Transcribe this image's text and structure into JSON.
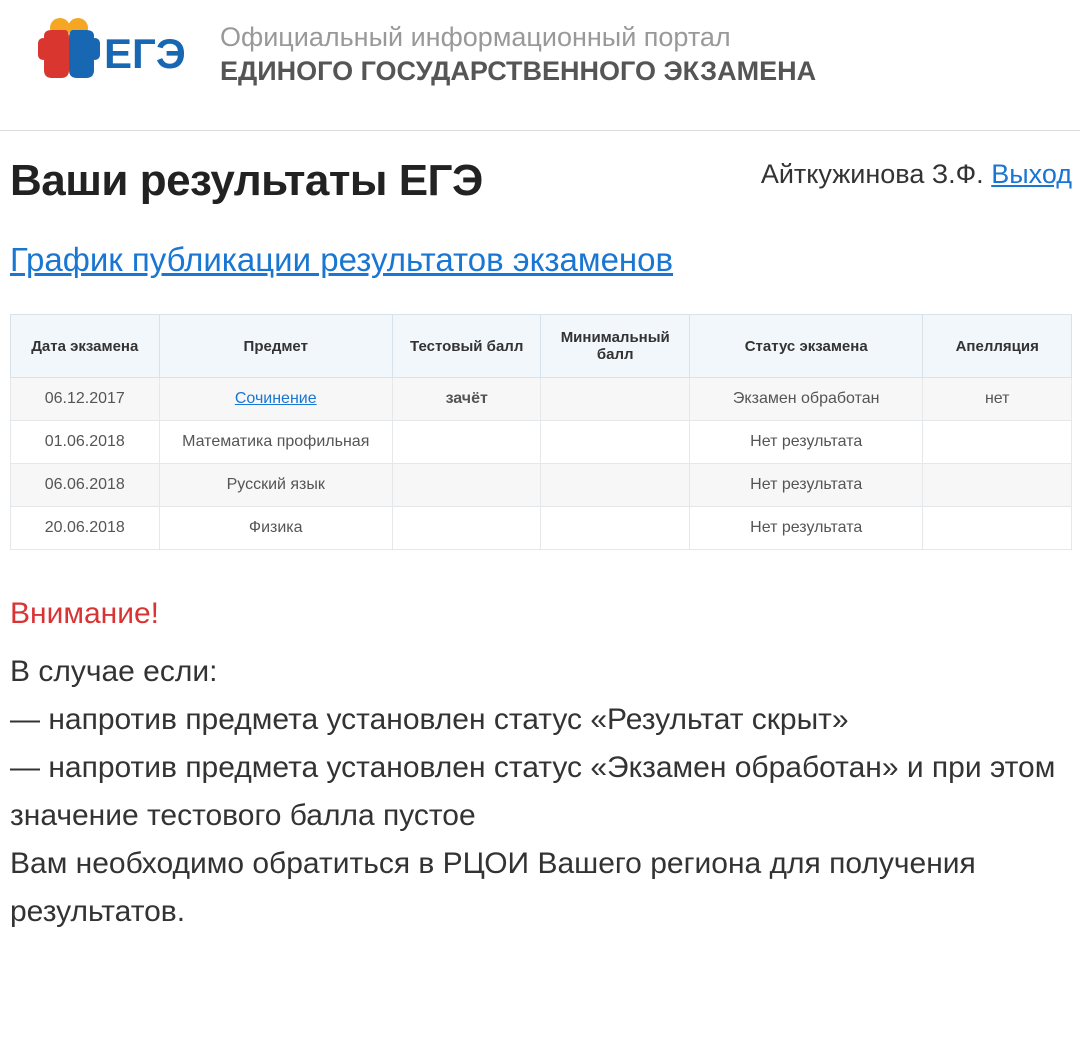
{
  "header": {
    "subtitle": "Официальный информационный портал",
    "title": "ЕДИНОГО ГОСУДАРСТВЕННОГО ЭКЗАМЕНА",
    "logo_text": "ЕГЭ",
    "logo_colors": {
      "left": "#d9362f",
      "right": "#1767b3",
      "head": "#f5a623"
    }
  },
  "user": {
    "name": "Айткужинова З.Ф.",
    "logout": "Выход"
  },
  "page": {
    "title": "Ваши результаты ЕГЭ",
    "schedule_link": "График публикации результатов экзаменов"
  },
  "table": {
    "columns": [
      "Дата экзамена",
      "Предмет",
      "Тестовый балл",
      "Минимальный балл",
      "Статус экзамена",
      "Апелляция"
    ],
    "col_widths": [
      "14%",
      "22%",
      "14%",
      "14%",
      "22%",
      "14%"
    ],
    "header_bg": "#f2f7fb",
    "border_color": "#d8e2ea",
    "alt_row_bg": "#f7f7f7",
    "rows": [
      {
        "date": "06.12.2017",
        "subject": "Сочинение",
        "subject_is_link": true,
        "score": "зачёт",
        "score_style": "pass",
        "min": "",
        "status": "Экзамен обработан",
        "appeal": "нет"
      },
      {
        "date": "01.06.2018",
        "subject": "Математика профильная",
        "subject_is_link": false,
        "score": "",
        "score_style": "",
        "min": "",
        "status": "Нет результата",
        "appeal": ""
      },
      {
        "date": "06.06.2018",
        "subject": "Русский язык",
        "subject_is_link": false,
        "score": "",
        "score_style": "",
        "min": "",
        "status": "Нет результата",
        "appeal": ""
      },
      {
        "date": "20.06.2018",
        "subject": "Физика",
        "subject_is_link": false,
        "score": "",
        "score_style": "",
        "min": "",
        "status": "Нет результата",
        "appeal": ""
      }
    ]
  },
  "notice": {
    "title": "Внимание!",
    "lines": [
      "В случае если:",
      "— напротив предмета установлен статус «Результат скрыт»",
      "— напротив предмета установлен статус «Экзамен обработан» и при этом значение тестового балла пустое",
      "Вам необходимо обратиться в РЦОИ Вашего региона для получения результатов."
    ]
  },
  "colors": {
    "link": "#1976d2",
    "pass": "#2e9b2e",
    "danger": "#d93333",
    "text": "#333333",
    "muted": "#999999"
  }
}
